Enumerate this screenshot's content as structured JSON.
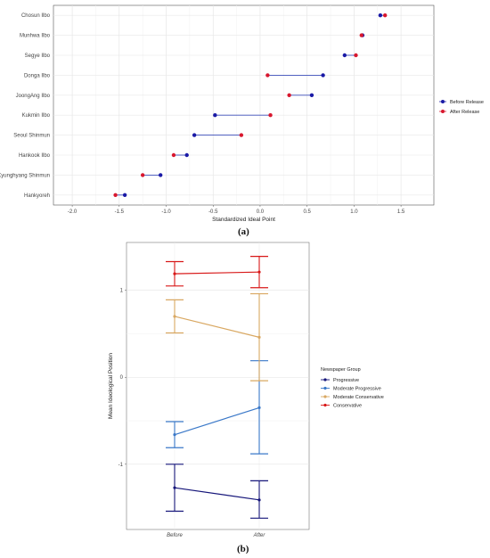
{
  "captions": {
    "a": "(a)",
    "b": "(b)"
  },
  "chart_data": [
    {
      "type": "dumbbell",
      "xlabel": "Standardized Ideal Point",
      "ylabel": "",
      "xlim": [
        -2.2,
        1.85
      ],
      "xticks": [
        -2.0,
        -1.5,
        -1.0,
        -0.5,
        0.0,
        0.5,
        1.0,
        1.5
      ],
      "xtick_labels": [
        "-2.0",
        "-1.5",
        "-1.0",
        "-0.5",
        "0.0",
        "0.5",
        "1.0",
        "1.5"
      ],
      "grid": true,
      "legend_position": "right",
      "categories": [
        "Chosun Ilbo",
        "Munhwa Ilbo",
        "Segye Ilbo",
        "Donga Ilbo",
        "JoongAng Ilbo",
        "Kukmin Ilbo",
        "Seoul Shinmun",
        "Hankook Ilbo",
        "Kyunghyang Shinmun",
        "Hankyoreh"
      ],
      "series": [
        {
          "name": "Before Release",
          "color": "#1a1aa6",
          "values": [
            1.28,
            1.09,
            0.9,
            0.67,
            0.55,
            -0.48,
            -0.7,
            -0.78,
            -1.06,
            -1.44
          ]
        },
        {
          "name": "After Release",
          "color": "#d8172e",
          "values": [
            1.33,
            1.08,
            1.02,
            0.08,
            0.31,
            0.11,
            -0.2,
            -0.92,
            -1.25,
            -1.54
          ]
        }
      ],
      "connector_color": "#3a4cb8"
    },
    {
      "type": "line",
      "xlabel": "",
      "ylabel": "Mean Ideological Position",
      "categories": [
        "Before",
        "After"
      ],
      "ylim": [
        -1.75,
        1.55
      ],
      "yticks": [
        -1,
        0,
        1
      ],
      "ytick_labels": [
        "-1",
        "0",
        "1"
      ],
      "grid": true,
      "legend_title": "Newspaper Group",
      "legend_position": "right",
      "error_bars": true,
      "series": [
        {
          "name": "Progressive",
          "color": "#16167a",
          "values": [
            -1.27,
            -1.41
          ],
          "ci_low": [
            -1.54,
            -1.62
          ],
          "ci_high": [
            -1.0,
            -1.19
          ]
        },
        {
          "name": "Moderate Progressive",
          "color": "#3a78c8",
          "values": [
            -0.66,
            -0.35
          ],
          "ci_low": [
            -0.81,
            -0.88
          ],
          "ci_high": [
            -0.51,
            0.19
          ]
        },
        {
          "name": "Moderate Conservative",
          "color": "#d9a862",
          "values": [
            0.7,
            0.46
          ],
          "ci_low": [
            0.51,
            -0.04
          ],
          "ci_high": [
            0.89,
            0.96
          ]
        },
        {
          "name": "Conservative",
          "color": "#d81818",
          "values": [
            1.19,
            1.21
          ],
          "ci_low": [
            1.05,
            1.03
          ],
          "ci_high": [
            1.33,
            1.39
          ]
        }
      ]
    }
  ]
}
